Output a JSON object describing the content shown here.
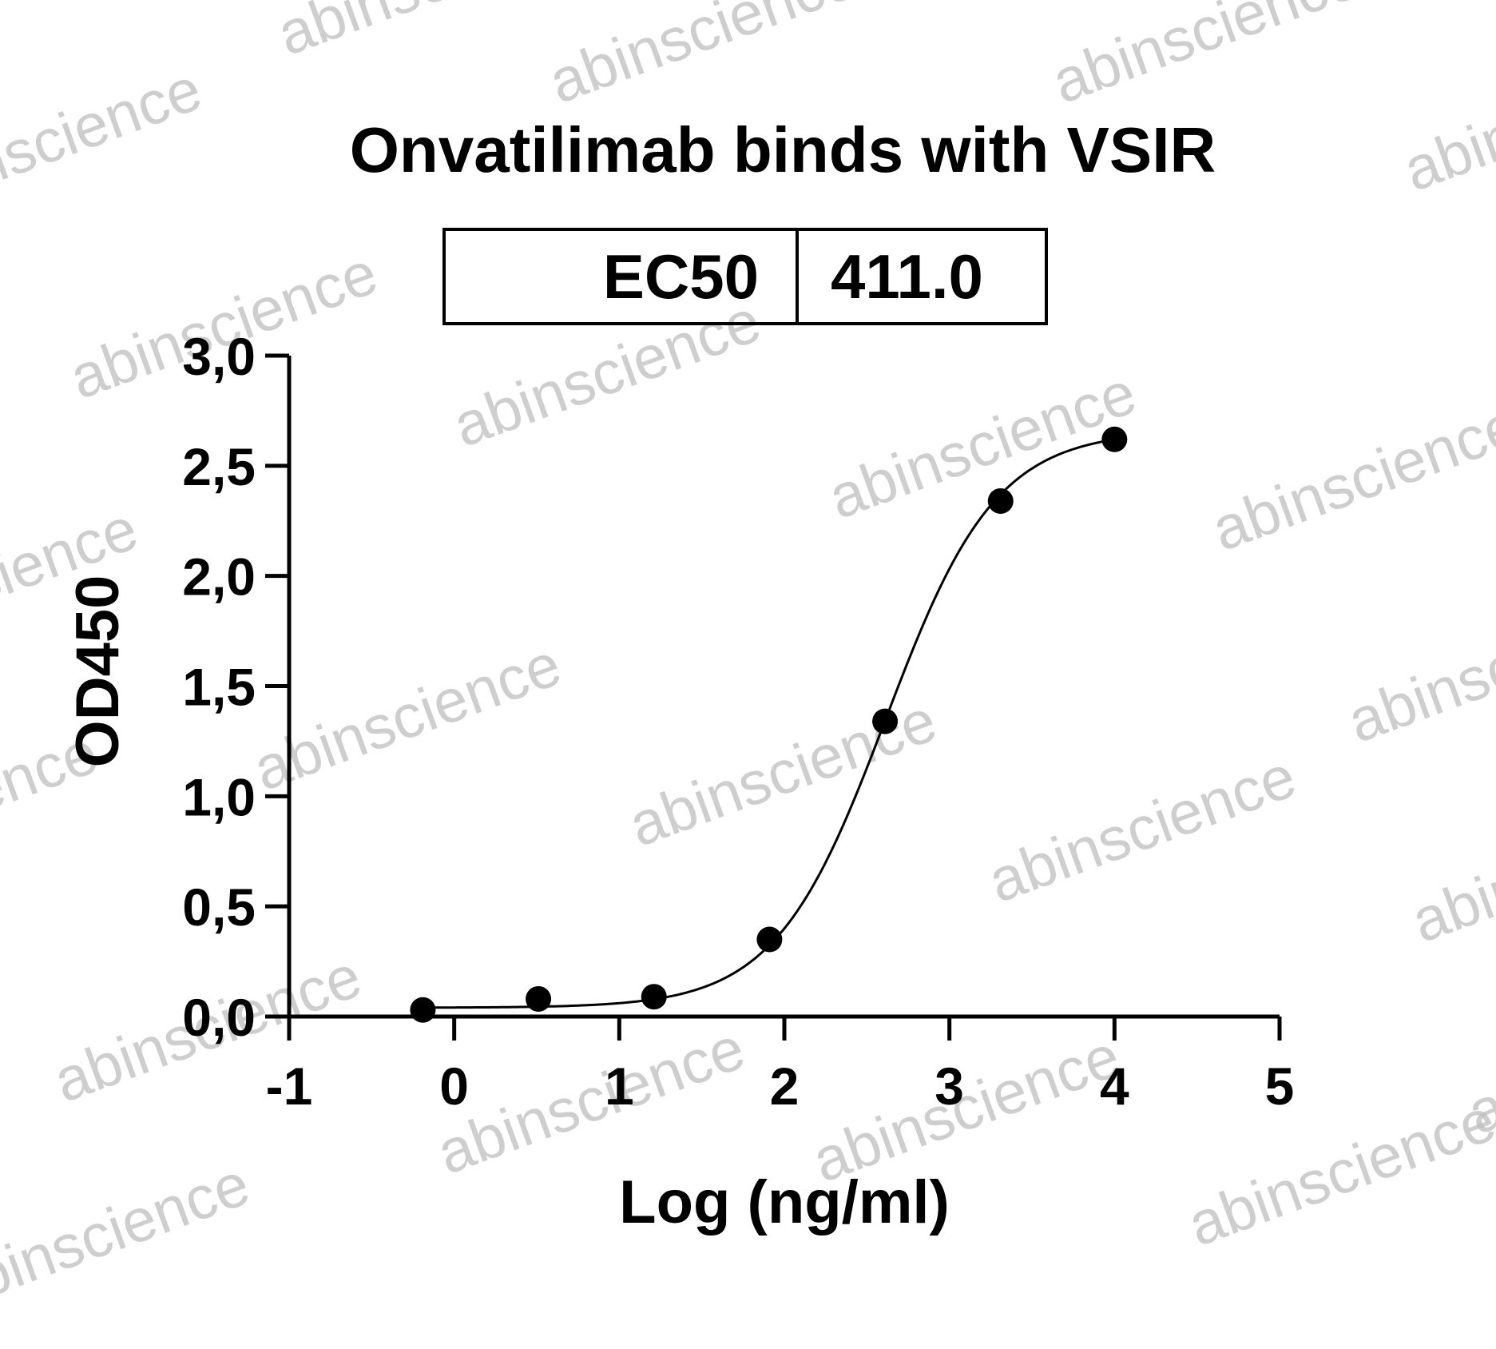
{
  "chart_data": {
    "type": "scatter",
    "title": "Onvatilimab binds with VSIR",
    "xlabel": "Log (ng/ml)",
    "ylabel": "OD450",
    "xlim": [
      -1,
      5
    ],
    "ylim": [
      0,
      3
    ],
    "x_ticks": [
      "-1",
      "0",
      "1",
      "2",
      "3",
      "4",
      "5"
    ],
    "y_ticks": [
      "0,0",
      "0,5",
      "1,0",
      "1,5",
      "2,0",
      "2,5",
      "3,0"
    ],
    "series": [
      {
        "x": [
          -0.19,
          0.51,
          1.21,
          1.91,
          2.61,
          3.31,
          4.0
        ],
        "y": [
          0.03,
          0.08,
          0.09,
          0.35,
          1.34,
          2.34,
          2.62
        ]
      }
    ],
    "fit_curve": {
      "model": "4PL",
      "bottom": 0.04,
      "top": 2.66,
      "log_ec50": 2.614,
      "hill_slope": 1.3
    },
    "ec50_table": {
      "label": "EC50",
      "value": "411.0"
    },
    "grid": false,
    "watermark": "abinscience",
    "colors": {
      "points": "#000000",
      "line": "#000000",
      "watermark": "#bdbdbd"
    }
  }
}
